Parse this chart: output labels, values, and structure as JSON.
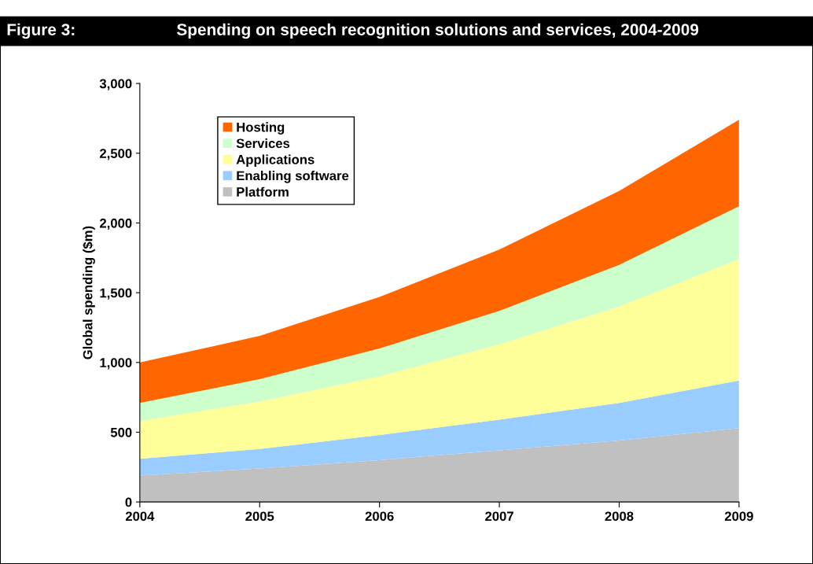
{
  "chart_data": {
    "type": "area",
    "stacked": true,
    "title": "Spending on speech recognition solutions and services, 2004-2009",
    "annotations": [
      "Figure 3:"
    ],
    "ylabel": "Global spending ($m)",
    "categories": [
      "2004",
      "2005",
      "2006",
      "2007",
      "2008",
      "2009"
    ],
    "series": [
      {
        "name": "Platform",
        "color": "#c0c0c0",
        "values": [
          190,
          240,
          300,
          370,
          440,
          530
        ]
      },
      {
        "name": "Enabling software",
        "color": "#99ccff",
        "values": [
          120,
          140,
          180,
          220,
          270,
          340
        ]
      },
      {
        "name": "Applications",
        "color": "#ffff99",
        "values": [
          270,
          340,
          420,
          540,
          690,
          870
        ]
      },
      {
        "name": "Services",
        "color": "#ccffcc",
        "values": [
          130,
          160,
          200,
          240,
          300,
          380
        ]
      },
      {
        "name": "Hosting",
        "color": "#ff6600",
        "values": [
          290,
          310,
          370,
          440,
          530,
          620
        ]
      }
    ],
    "ylim": [
      0,
      3000
    ],
    "yticks": [
      {
        "value": 0,
        "label": "0"
      },
      {
        "value": 500,
        "label": "500"
      },
      {
        "value": 1000,
        "label": "1,000"
      },
      {
        "value": 1500,
        "label": "1,500"
      },
      {
        "value": 2000,
        "label": "2,000"
      },
      {
        "value": 2500,
        "label": "2,500"
      },
      {
        "value": 3000,
        "label": "3,000"
      }
    ],
    "grid": false,
    "legend": "top left"
  }
}
